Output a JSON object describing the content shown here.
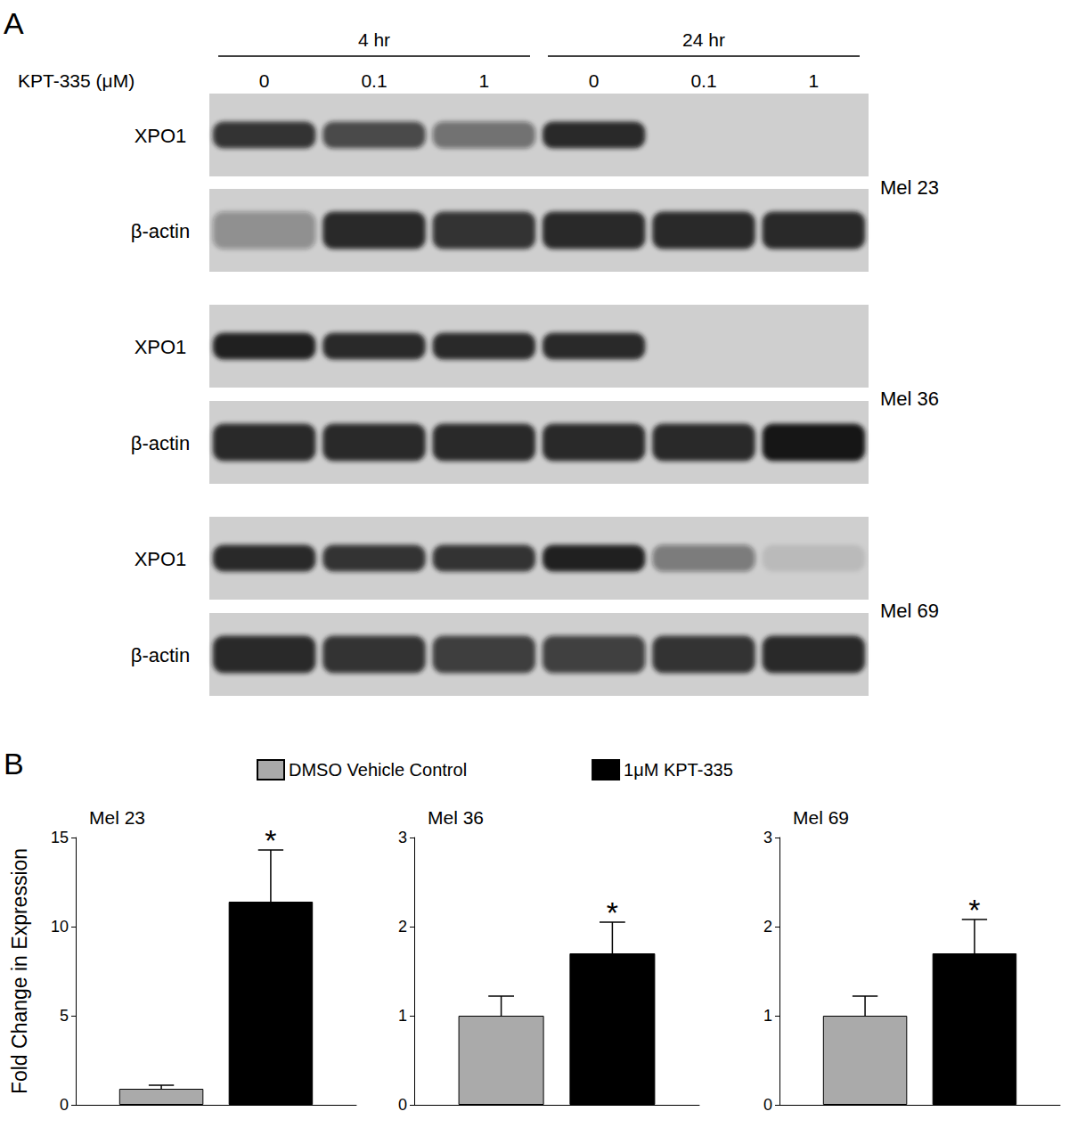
{
  "panel_a": {
    "label": "A",
    "dose_label": "KPT-335 (μM)",
    "time_groups": [
      {
        "label": "4 hr",
        "doses": [
          0,
          0.1,
          1
        ]
      },
      {
        "label": "24 hr",
        "doses": [
          0,
          0.1,
          1
        ]
      }
    ],
    "blots": [
      {
        "cell_line": "Mel 23",
        "rows": [
          {
            "label": "XPO1",
            "intensity": [
              0.85,
              0.7,
              0.5,
              0.9,
              0,
              0
            ]
          },
          {
            "label": "β-actin",
            "intensity": [
              0.35,
              0.9,
              0.85,
              0.9,
              0.9,
              0.9
            ]
          }
        ]
      },
      {
        "cell_line": "Mel 36",
        "rows": [
          {
            "label": "XPO1",
            "intensity": [
              0.95,
              0.9,
              0.9,
              0.9,
              0,
              0
            ]
          },
          {
            "label": "β-actin",
            "intensity": [
              0.9,
              0.9,
              0.9,
              0.9,
              0.9,
              1.0
            ]
          }
        ]
      },
      {
        "cell_line": "Mel 69",
        "rows": [
          {
            "label": "XPO1",
            "intensity": [
              0.9,
              0.85,
              0.85,
              0.95,
              0.45,
              0.1
            ]
          },
          {
            "label": "β-actin",
            "intensity": [
              0.9,
              0.85,
              0.8,
              0.75,
              0.85,
              0.9
            ]
          }
        ]
      }
    ]
  },
  "panel_b_label": "B",
  "chart_data": [
    {
      "type": "bar",
      "title": "Mel 23",
      "ylabel": "Fold Change in Expression",
      "legend": "top",
      "grid": false,
      "categories": [
        null
      ],
      "ylim": [
        0,
        15
      ],
      "yticks": [
        0,
        5,
        10,
        15
      ],
      "series": [
        {
          "name": "DMSO Vehicle Control",
          "color": "#aaaaaa",
          "values": [
            0.9
          ],
          "errors": [
            0.2
          ]
        },
        {
          "name": "1μM KPT-335",
          "color": "#000000",
          "values": [
            11.4
          ],
          "errors": [
            2.9
          ],
          "annotation": "*"
        }
      ]
    },
    {
      "type": "bar",
      "title": "Mel 36",
      "grid": false,
      "categories": [
        null
      ],
      "ylim": [
        0,
        3
      ],
      "yticks": [
        0,
        1,
        2,
        3
      ],
      "series": [
        {
          "name": "DMSO Vehicle Control",
          "color": "#aaaaaa",
          "values": [
            1.0
          ],
          "errors": [
            0.22
          ]
        },
        {
          "name": "1μM KPT-335",
          "color": "#000000",
          "values": [
            1.7
          ],
          "errors": [
            0.35
          ],
          "annotation": "*"
        }
      ]
    },
    {
      "type": "bar",
      "title": "Mel 69",
      "grid": false,
      "categories": [
        null
      ],
      "ylim": [
        0,
        3
      ],
      "yticks": [
        0,
        1,
        2,
        3
      ],
      "series": [
        {
          "name": "DMSO Vehicle Control",
          "color": "#aaaaaa",
          "values": [
            1.0
          ],
          "errors": [
            0.22
          ]
        },
        {
          "name": "1μM KPT-335",
          "color": "#000000",
          "values": [
            1.7
          ],
          "errors": [
            0.38
          ],
          "annotation": "*"
        }
      ]
    }
  ]
}
